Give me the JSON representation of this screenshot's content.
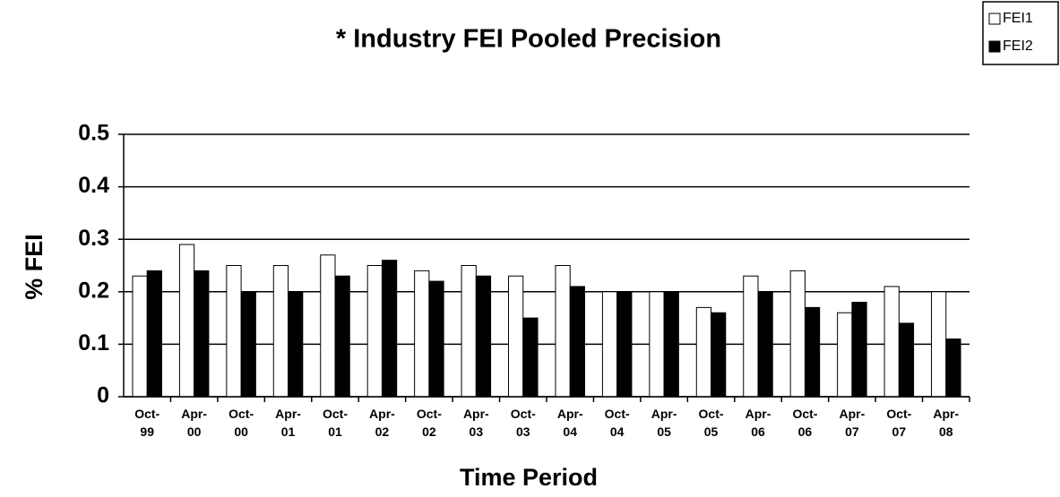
{
  "chart_data": {
    "type": "bar",
    "title": "* Industry FEI Pooled Precision",
    "x_label": "Time Period",
    "y_label": "% FEI",
    "categories": [
      "Oct-\n99",
      "Apr-\n00",
      "Oct-\n00",
      "Apr-\n01",
      "Oct-\n01",
      "Apr-\n02",
      "Oct-\n02",
      "Apr-\n03",
      "Oct-\n03",
      "Apr-\n04",
      "Oct-\n04",
      "Apr-\n05",
      "Oct-\n05",
      "Apr-\n06",
      "Oct-\n06",
      "Apr-\n07",
      "Oct-\n07",
      "Apr-\n08"
    ],
    "series": [
      {
        "name": "FEI1",
        "color": "#ffffff",
        "values": [
          0.23,
          0.29,
          0.25,
          0.25,
          0.27,
          0.25,
          0.24,
          0.25,
          0.23,
          0.25,
          0.2,
          0.2,
          0.17,
          0.23,
          0.24,
          0.16,
          0.21,
          0.2
        ]
      },
      {
        "name": "FEI2",
        "color": "#000000",
        "values": [
          0.24,
          0.24,
          0.2,
          0.2,
          0.23,
          0.26,
          0.22,
          0.23,
          0.15,
          0.21,
          0.2,
          0.2,
          0.16,
          0.2,
          0.17,
          0.18,
          0.14,
          0.11
        ]
      }
    ],
    "ylim": [
      0,
      0.5
    ],
    "yticks": [
      0,
      0.1,
      0.2,
      0.3,
      0.4,
      0.5
    ],
    "grid": true,
    "legend": "top-right"
  }
}
